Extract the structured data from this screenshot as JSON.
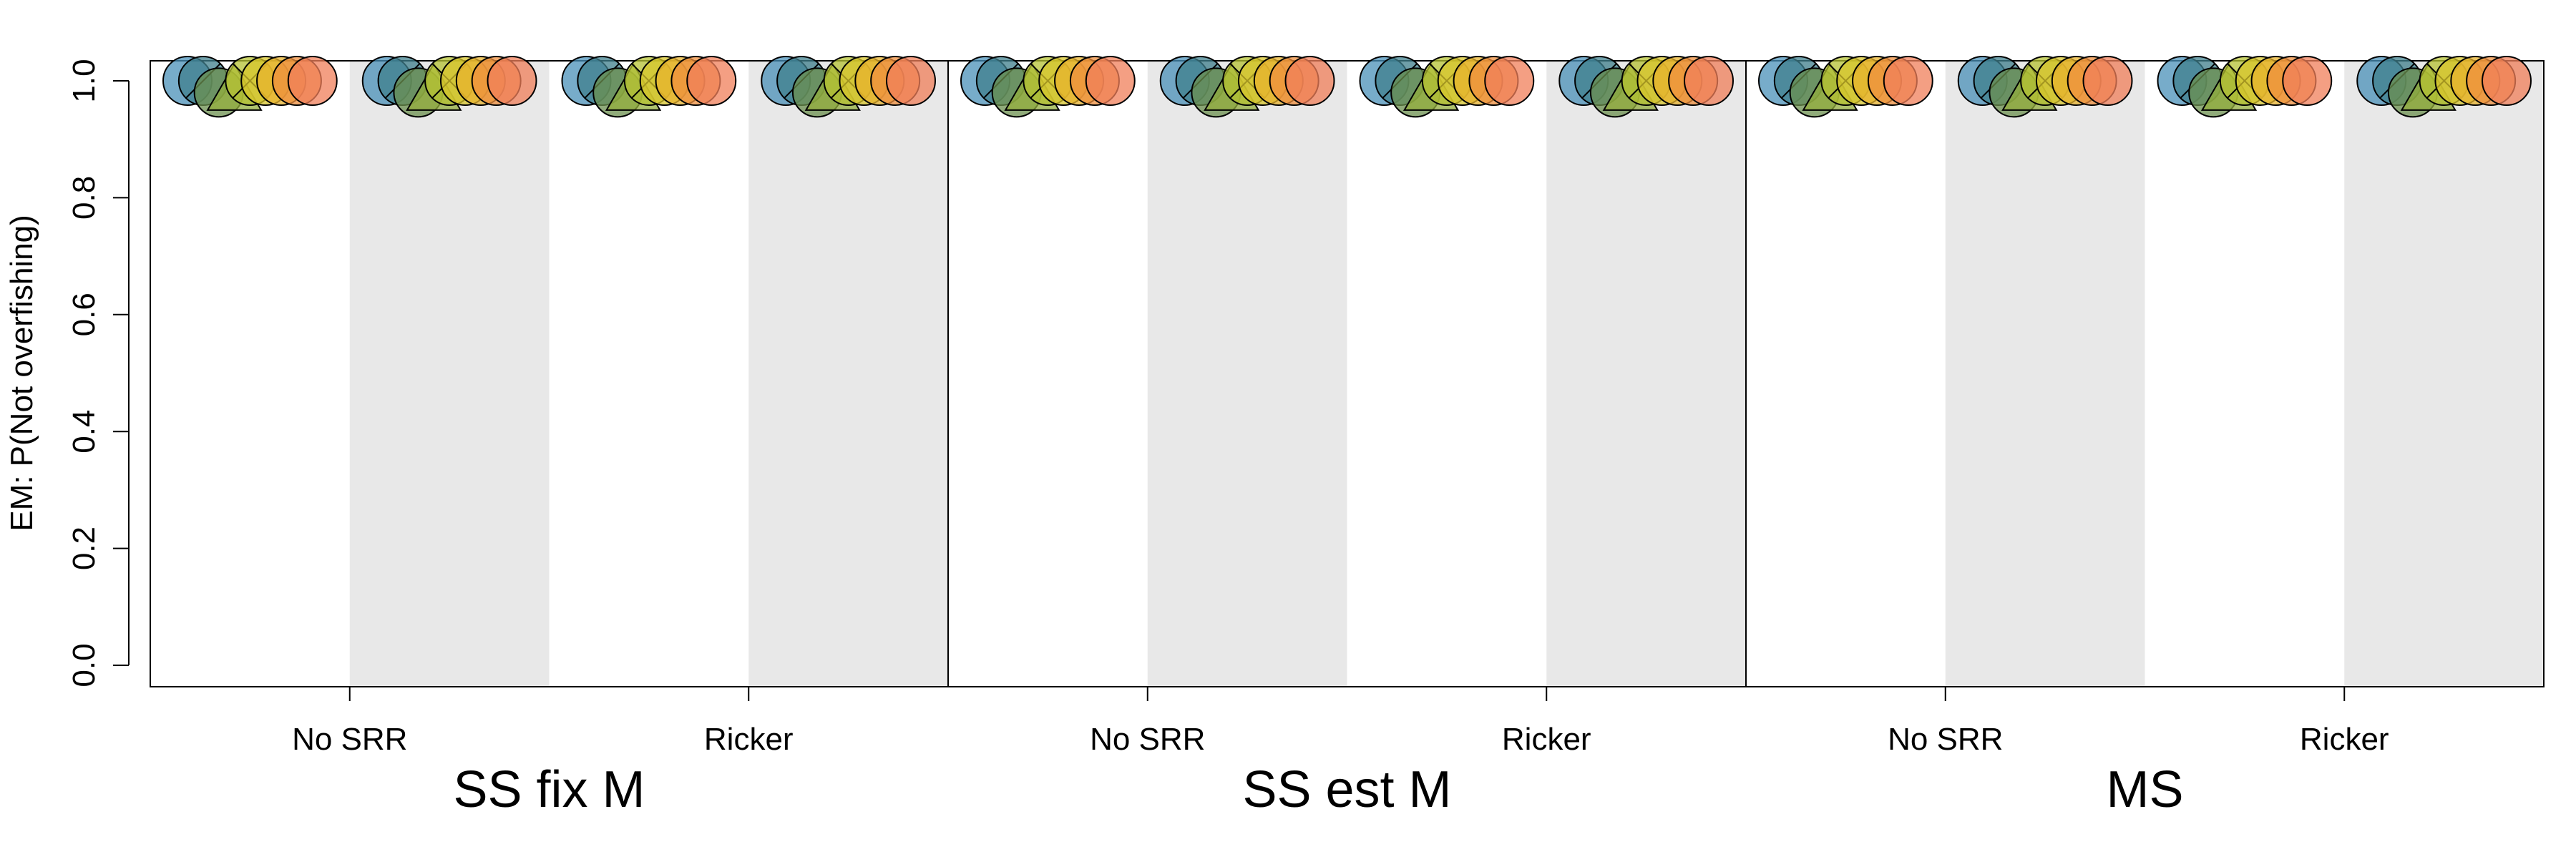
{
  "chart_data": {
    "type": "scatter",
    "ylabel": "EM: P(Not overfishing)",
    "ylim": [
      0,
      1
    ],
    "yticks": [
      "0.0",
      "0.2",
      "0.4",
      "0.6",
      "0.8",
      "1.0"
    ],
    "panels": [
      {
        "name": "SS fix M",
        "groups": [
          "No SRR",
          "Ricker"
        ]
      },
      {
        "name": "SS est M",
        "groups": [
          "No SRR",
          "Ricker"
        ]
      },
      {
        "name": "MS",
        "groups": [
          "No SRR",
          "Ricker"
        ]
      }
    ],
    "shading": "alternating grey background on second half of each group",
    "marker_colors": [
      "#4a90b8",
      "#3f7f8c",
      "#6b8f4e",
      "#93ad3c",
      "#b5c233",
      "#d8c62b",
      "#e8b32e",
      "#ef8f3e",
      "#f07f5a"
    ],
    "marker_shapes": [
      "circle",
      "circle-slash",
      "circle",
      "triangle",
      "circle-x",
      "circle",
      "circle",
      "circle",
      "circle"
    ],
    "series": [
      {
        "panel": "SS fix M",
        "group": "No SRR",
        "half": "left",
        "values": [
          1.0,
          1.0,
          0.98,
          0.98,
          1.0,
          1.0,
          1.0,
          1.0,
          1.0
        ]
      },
      {
        "panel": "SS fix M",
        "group": "No SRR",
        "half": "right",
        "values": [
          1.0,
          1.0,
          0.98,
          0.98,
          1.0,
          1.0,
          1.0,
          1.0,
          1.0
        ]
      },
      {
        "panel": "SS fix M",
        "group": "Ricker",
        "half": "left",
        "values": [
          1.0,
          1.0,
          0.98,
          0.98,
          1.0,
          1.0,
          1.0,
          1.0,
          1.0
        ]
      },
      {
        "panel": "SS fix M",
        "group": "Ricker",
        "half": "right",
        "values": [
          1.0,
          1.0,
          0.98,
          0.98,
          1.0,
          1.0,
          1.0,
          1.0,
          1.0
        ]
      },
      {
        "panel": "SS est M",
        "group": "No SRR",
        "half": "left",
        "values": [
          1.0,
          1.0,
          0.98,
          0.98,
          1.0,
          1.0,
          1.0,
          1.0,
          1.0
        ]
      },
      {
        "panel": "SS est M",
        "group": "No SRR",
        "half": "right",
        "values": [
          1.0,
          1.0,
          0.98,
          0.98,
          1.0,
          1.0,
          1.0,
          1.0,
          1.0
        ]
      },
      {
        "panel": "SS est M",
        "group": "Ricker",
        "half": "left",
        "values": [
          1.0,
          1.0,
          0.98,
          0.98,
          1.0,
          1.0,
          1.0,
          1.0,
          1.0
        ]
      },
      {
        "panel": "SS est M",
        "group": "Ricker",
        "half": "right",
        "values": [
          1.0,
          1.0,
          0.98,
          0.98,
          1.0,
          1.0,
          1.0,
          1.0,
          1.0
        ]
      },
      {
        "panel": "MS",
        "group": "No SRR",
        "half": "left",
        "values": [
          1.0,
          1.0,
          0.98,
          0.98,
          1.0,
          1.0,
          1.0,
          1.0,
          1.0
        ]
      },
      {
        "panel": "MS",
        "group": "No SRR",
        "half": "right",
        "values": [
          1.0,
          1.0,
          0.98,
          0.98,
          1.0,
          1.0,
          1.0,
          1.0,
          1.0
        ]
      },
      {
        "panel": "MS",
        "group": "Ricker",
        "half": "left",
        "values": [
          1.0,
          1.0,
          0.98,
          0.98,
          1.0,
          1.0,
          1.0,
          1.0,
          1.0
        ]
      },
      {
        "panel": "MS",
        "group": "Ricker",
        "half": "right",
        "values": [
          1.0,
          1.0,
          0.98,
          0.98,
          1.0,
          1.0,
          1.0,
          1.0,
          1.0
        ]
      }
    ]
  }
}
